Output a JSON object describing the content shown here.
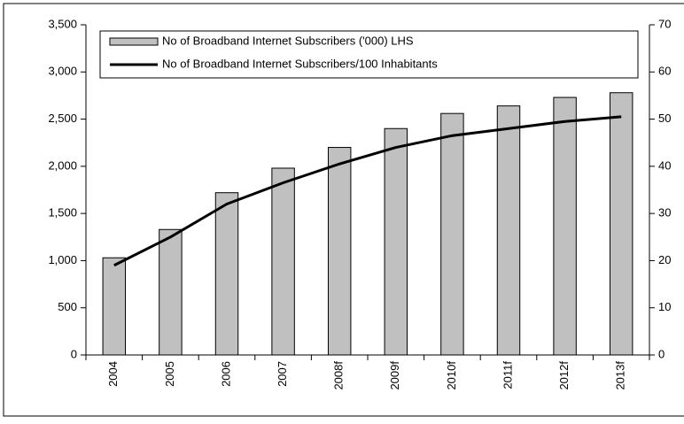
{
  "chart_data": {
    "type": "bar_line",
    "categories": [
      "2004",
      "2005",
      "2006",
      "2007",
      "2008f",
      "2009f",
      "2010f",
      "2011f",
      "2012f",
      "2013f"
    ],
    "series": [
      {
        "name": "No of Broadband Internet Subscribers ('000) LHS",
        "type": "bar",
        "color": "#c0c0c0",
        "values": [
          1030,
          1330,
          1720,
          1980,
          2200,
          2400,
          2560,
          2640,
          2730,
          2780
        ]
      },
      {
        "name": "No of Broadband Internet Subscribers/100 Inhabitants",
        "type": "line",
        "color": "#000000",
        "axis": "y2",
        "values": [
          19,
          25,
          32,
          36.5,
          40.5,
          44,
          46.5,
          48,
          49.5,
          50.5
        ]
      }
    ],
    "ylim": [
      0,
      3500
    ],
    "yticks": [
      0,
      500,
      {
        "value": 1000,
        "label": "1,000"
      },
      {
        "value": 1500,
        "label": "1,500"
      },
      {
        "value": 2000,
        "label": "2,000"
      },
      {
        "value": 2500,
        "label": "2,500"
      },
      {
        "value": 3000,
        "label": "3,000"
      },
      {
        "value": 3500,
        "label": "3,500"
      }
    ],
    "y2lim": [
      0,
      70
    ],
    "y2ticks": [
      0,
      10,
      20,
      30,
      40,
      50,
      60,
      70
    ],
    "grid": false,
    "legend": "top"
  }
}
